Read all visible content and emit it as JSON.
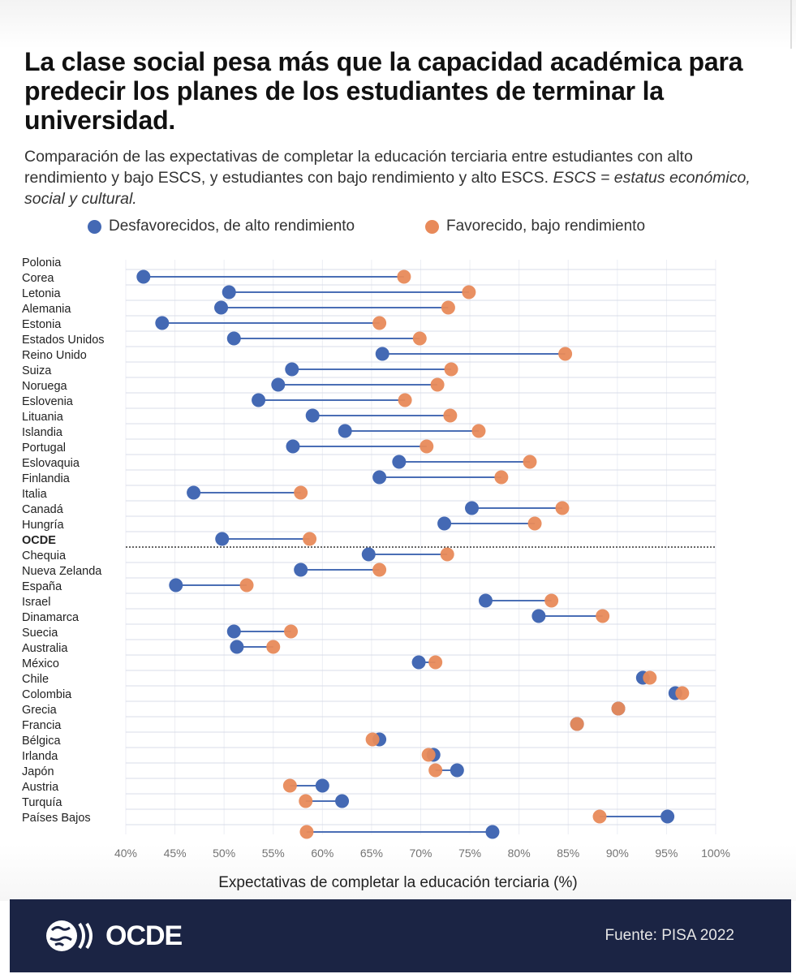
{
  "title": "La clase social pesa más que la capacidad académica para predecir los planes de los estudiantes de terminar la universidad.",
  "subtitle_main": "Comparación de las expectativas de completar la educación terciaria entre estudiantes con alto rendimiento y bajo ESCS, y estudiantes con bajo rendimiento y alto ESCS.",
  "subtitle_note": "ESCS = estatus económico, social y cultural.",
  "legend": {
    "series_a": "Desfavorecidos, de alto rendimiento",
    "series_b": "Favorecido, bajo rendimiento"
  },
  "colors": {
    "series_a": "#4469b4",
    "series_b": "#e88a5a",
    "line": "#4a6eb5",
    "grid": "#d8dce8"
  },
  "footer": {
    "logo_text": "OCDE",
    "source": "Fuente: PISA 2022"
  },
  "chart_data": {
    "type": "dumbbell",
    "xlabel": "Expectativas de completar la educación terciaria (%)",
    "xlim": [
      40,
      100
    ],
    "xticks": [
      "40%",
      "45%",
      "50%",
      "55%",
      "60%",
      "65%",
      "70%",
      "75%",
      "80%",
      "85%",
      "90%",
      "95%",
      "100%"
    ],
    "grid": true,
    "legend_position": "top",
    "reference_row": "OCDE",
    "categories": [
      "Polonia",
      "Corea",
      "Letonia",
      "Alemania",
      "Estonia",
      "Estados Unidos",
      "Reino Unido",
      "Suiza",
      "Noruega",
      "Eslovenia",
      "Lituania",
      "Islandia",
      "Portugal",
      "Eslovaquia",
      "Finlandia",
      "Italia",
      "Canadá",
      "Hungría",
      "OCDE",
      "Chequia",
      "Nueva Zelanda",
      "España",
      "Israel",
      "Dinamarca",
      "Suecia",
      "Australia",
      "México",
      "Chile",
      "Colombia",
      "Grecia",
      "Francia",
      "Bélgica",
      "Irlanda",
      "Japón",
      "Austria",
      "Turquía",
      "Países Bajos"
    ],
    "series": [
      {
        "name": "Desfavorecidos, de alto rendimiento",
        "values": [
          41.8,
          50.5,
          49.7,
          43.7,
          51.0,
          66.1,
          56.9,
          55.5,
          53.5,
          59.0,
          62.3,
          57.0,
          67.8,
          65.8,
          46.9,
          75.2,
          72.4,
          49.8,
          64.7,
          57.8,
          45.1,
          76.6,
          82.0,
          51.0,
          51.3,
          69.8,
          92.6,
          95.9,
          90.1,
          85.9,
          65.8,
          71.3,
          73.7,
          60.0,
          62.0,
          95.1,
          77.3
        ]
      },
      {
        "name": "Favorecido, bajo rendimiento",
        "values": [
          68.3,
          74.9,
          72.8,
          65.8,
          69.9,
          84.7,
          73.1,
          71.7,
          68.4,
          73.0,
          75.9,
          70.6,
          81.1,
          78.2,
          57.8,
          84.4,
          81.6,
          58.7,
          72.7,
          65.8,
          52.3,
          83.3,
          88.5,
          56.8,
          55.0,
          71.5,
          93.3,
          96.6,
          90.1,
          85.9,
          65.1,
          70.8,
          71.5,
          56.7,
          58.3,
          88.2,
          58.4
        ]
      }
    ]
  }
}
